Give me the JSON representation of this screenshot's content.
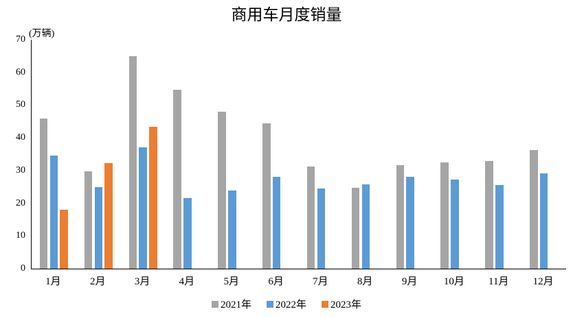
{
  "chart_data": {
    "type": "bar",
    "title": "商用车月度销量",
    "unit_label": "(万辆)",
    "xlabel": "",
    "ylabel": "(万辆)",
    "categories": [
      "1月",
      "2月",
      "3月",
      "4月",
      "5月",
      "6月",
      "7月",
      "8月",
      "9月",
      "10月",
      "11月",
      "12月"
    ],
    "series": [
      {
        "name": "2021年",
        "color": "#A5A5A5",
        "values": [
          45.8,
          29.8,
          65.0,
          54.8,
          48.0,
          44.5,
          31.2,
          24.8,
          31.7,
          32.4,
          32.9,
          36.2
        ]
      },
      {
        "name": "2022年",
        "color": "#5B9BD5",
        "values": [
          34.5,
          25.0,
          37.0,
          21.6,
          24.0,
          28.1,
          24.5,
          25.8,
          28.0,
          27.2,
          25.5,
          29.2
        ]
      },
      {
        "name": "2023年",
        "color": "#ED7D31",
        "values": [
          18.1,
          32.3,
          43.4,
          null,
          null,
          null,
          null,
          null,
          null,
          null,
          null,
          null
        ]
      }
    ],
    "ylim": [
      0,
      70
    ],
    "yticks": [
      0,
      10,
      20,
      30,
      40,
      50,
      60,
      70
    ],
    "grid": false,
    "legend_position": "bottom",
    "axis_color": "#000000",
    "text_color": "#000000",
    "background_color": "#FFFFFF"
  }
}
